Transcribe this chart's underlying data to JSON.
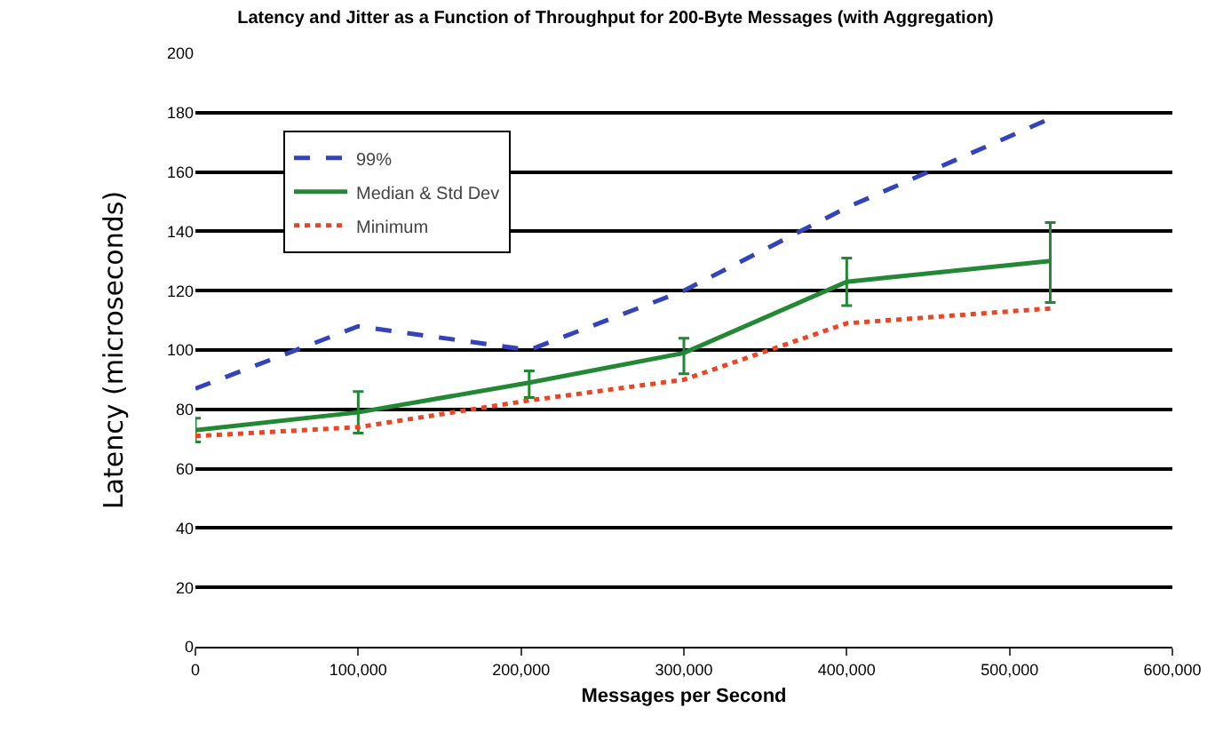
{
  "chart_data": {
    "type": "line",
    "title": "Latency and Jitter as a Function of Throughput for 200-Byte Messages (with Aggregation)",
    "xlabel": "Messages per Second",
    "ylabel": "Latency (microseconds)",
    "x": [
      0,
      100000,
      205000,
      300000,
      400000,
      525000
    ],
    "series": [
      {
        "name": "99%",
        "color": "#3344bb",
        "line_style": "dashed",
        "values": [
          87,
          108,
          100,
          120,
          148,
          178
        ]
      },
      {
        "name": "Median & Std Dev",
        "color": "#228833",
        "line_style": "solid",
        "values": [
          73,
          79,
          89,
          99,
          123,
          130
        ],
        "errors": [
          [
            69,
            77
          ],
          [
            72,
            86
          ],
          [
            84,
            93
          ],
          [
            92,
            104
          ],
          [
            115,
            131
          ],
          [
            116,
            143
          ]
        ]
      },
      {
        "name": "Minimum",
        "color": "#ee4422",
        "line_style": "dotted",
        "values": [
          71,
          74,
          83,
          90,
          109,
          114
        ]
      }
    ],
    "xlim": [
      0,
      600000
    ],
    "xticks": [
      {
        "value": 0,
        "label": "0"
      },
      {
        "value": 100000,
        "label": "100,000"
      },
      {
        "value": 200000,
        "label": "200,000"
      },
      {
        "value": 300000,
        "label": "300,000"
      },
      {
        "value": 400000,
        "label": "400,000"
      },
      {
        "value": 500000,
        "label": "500,000"
      },
      {
        "value": 600000,
        "label": "600,000"
      }
    ],
    "ylim": [
      0,
      200
    ],
    "yticks": [
      0,
      20,
      40,
      60,
      80,
      100,
      120,
      140,
      160,
      180,
      200
    ],
    "grid": "y",
    "legend": "top left",
    "marker": "none"
  }
}
